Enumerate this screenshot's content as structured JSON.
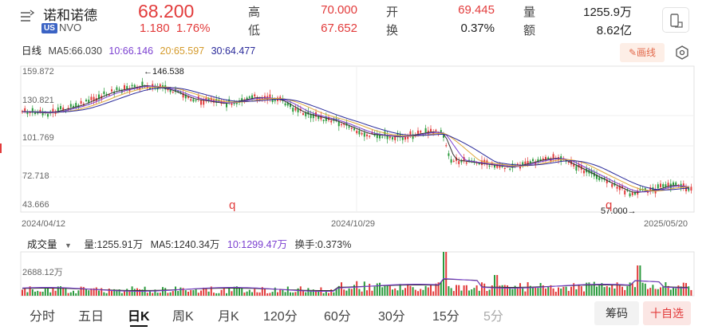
{
  "header": {
    "name": "诺和诺德",
    "market_badge": "US",
    "code": "NVO",
    "price": "68.200",
    "change": "1.180",
    "change_pct": "1.76%",
    "stats": [
      {
        "label": "高",
        "value": "70.000",
        "color": "red"
      },
      {
        "label": "开",
        "value": "69.445",
        "color": "red"
      },
      {
        "label": "量",
        "value": "1255.9万",
        "color": "dk"
      },
      {
        "label": "低",
        "value": "67.652",
        "color": "red"
      },
      {
        "label": "换",
        "value": "0.37%",
        "color": "dk"
      },
      {
        "label": "额",
        "value": "8.62亿",
        "color": "dk"
      }
    ]
  },
  "ma": {
    "period": "日线",
    "ma5": "MA5:66.030",
    "ma10": "10:66.146",
    "ma20": "20:65.597",
    "ma30": "30:64.477"
  },
  "colors": {
    "up": "#e23b3b",
    "down": "#2a9a3c",
    "ma5": "#333333",
    "ma10": "#7b3fd0",
    "ma20": "#e0a93a",
    "ma30": "#2a2a9a"
  },
  "draw_button": "画线",
  "price_axis": [
    "159.872",
    "130.821",
    "101.769",
    "72.718",
    "43.666"
  ],
  "dates": [
    "2024/04/12",
    "2024/10/29",
    "2025/05/20"
  ],
  "annotations": {
    "high": "←146.538",
    "low": "57.000→",
    "marker": "q"
  },
  "volume": {
    "selector": "成交量",
    "vol": "量:1255.91万",
    "ma5": "MA5:1240.34万",
    "ma10": "10:1299.47万",
    "turnover": "换手:0.373%",
    "axis_label": "2688.12万"
  },
  "tabs": [
    "分时",
    "五日",
    "日K",
    "周K",
    "月K",
    "120分",
    "60分",
    "30分",
    "15分",
    "5分"
  ],
  "active_tab": "日K",
  "buttons": {
    "chouma": "筹码",
    "zixuan": "十自选"
  }
}
